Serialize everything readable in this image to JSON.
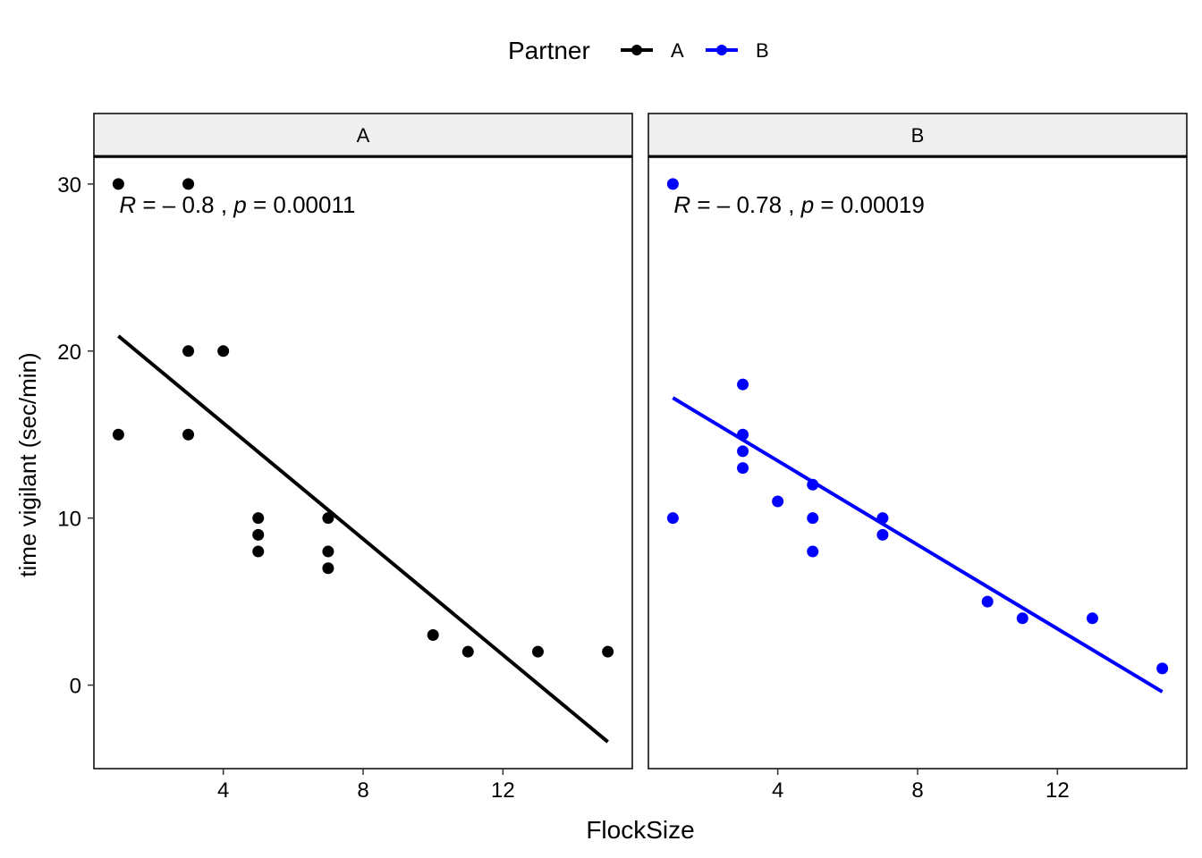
{
  "chart_data": {
    "type": "scatter",
    "xlabel": "FlockSize",
    "ylabel": "time vigilant (sec/min)",
    "legend": {
      "title": "Partner",
      "placement": "top",
      "entries": [
        {
          "name": "A",
          "color": "#000000"
        },
        {
          "name": "B",
          "color": "#0000ff"
        }
      ]
    },
    "xlim": [
      0.3,
      15.7
    ],
    "ylim": [
      -5,
      31.6
    ],
    "xticks": [
      4,
      8,
      12
    ],
    "yticks": [
      0,
      10,
      20,
      30
    ],
    "grid": false,
    "panels": [
      {
        "strip": "A",
        "color": "#000000",
        "annotation": {
          "r_label": "R",
          "r_value": " = – 0.8 , ",
          "p_label": "p",
          "p_value": " = 0.00011"
        },
        "points": [
          [
            1,
            30
          ],
          [
            3,
            30
          ],
          [
            1,
            15
          ],
          [
            3,
            20
          ],
          [
            4,
            20
          ],
          [
            3,
            15
          ],
          [
            5,
            10
          ],
          [
            5,
            9
          ],
          [
            5,
            8
          ],
          [
            7,
            10
          ],
          [
            7,
            8
          ],
          [
            7,
            7
          ],
          [
            10,
            3
          ],
          [
            11,
            2
          ],
          [
            13,
            2
          ],
          [
            15,
            2
          ]
        ],
        "fit": [
          [
            1,
            20.9
          ],
          [
            15,
            -3.4
          ]
        ]
      },
      {
        "strip": "B",
        "color": "#0000ff",
        "annotation": {
          "r_label": "R",
          "r_value": " = – 0.78 , ",
          "p_label": "p",
          "p_value": " = 0.00019"
        },
        "points": [
          [
            1,
            30
          ],
          [
            1,
            10
          ],
          [
            3,
            18
          ],
          [
            3,
            15
          ],
          [
            3,
            14
          ],
          [
            3,
            13
          ],
          [
            4,
            11
          ],
          [
            5,
            12
          ],
          [
            5,
            10
          ],
          [
            5,
            8
          ],
          [
            7,
            10
          ],
          [
            7,
            9
          ],
          [
            10,
            5
          ],
          [
            11,
            4
          ],
          [
            13,
            4
          ],
          [
            15,
            1
          ]
        ],
        "fit": [
          [
            1,
            17.2
          ],
          [
            15,
            -0.4
          ]
        ]
      }
    ]
  }
}
